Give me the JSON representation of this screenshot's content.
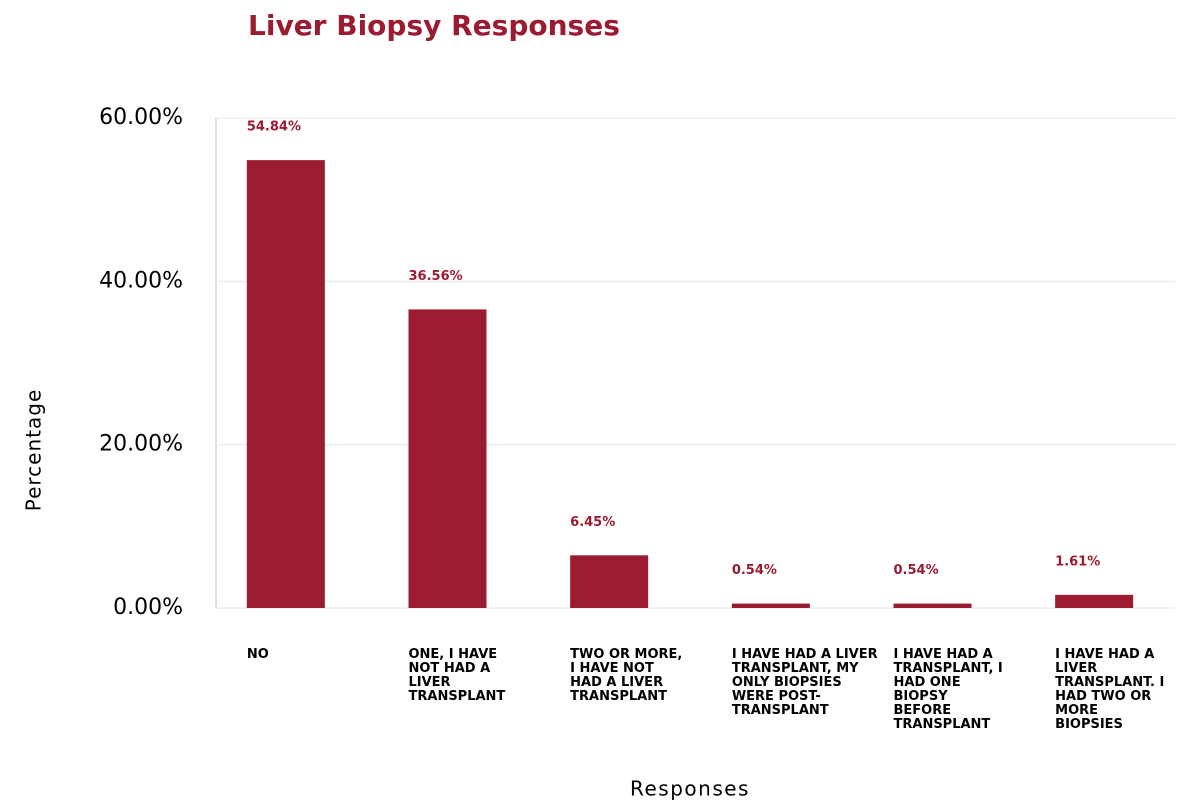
{
  "chart_data": {
    "type": "bar",
    "title": "Liver Biopsy Responses",
    "x_label": "Responses",
    "y_label": "Percentage",
    "categories": [
      "NO",
      "ONE, I HAVE NOT HAD A LIVER TRANSPLANT",
      "TWO OR MORE, I HAVE NOT HAD A LIVER TRANSPLANT",
      "I HAVE HAD A LIVER TRANSPLANT, MY ONLY BIOPSIES WERE POST-TRANSPLANT",
      "I HAVE HAD A TRANSPLANT, I HAD ONE BIOPSY BEFORE TRANSPLANT",
      "I HAVE HAD A LIVER TRANSPLANT. I HAD TWO OR MORE BIOPSIES"
    ],
    "values": [
      54.84,
      36.56,
      6.45,
      0.54,
      0.54,
      1.61
    ],
    "value_labels": [
      "54.84%",
      "36.56%",
      "6.45%",
      "0.54%",
      "0.54%",
      "1.61%"
    ],
    "color": "#9b1b30",
    "ylim": [
      0,
      60
    ],
    "yticks": [
      {
        "value": 0,
        "label": "0.00%"
      },
      {
        "value": 20,
        "label": "20.00%"
      },
      {
        "value": 40,
        "label": "40.00%"
      },
      {
        "value": 60,
        "label": "60.00%"
      }
    ],
    "grid": true
  }
}
